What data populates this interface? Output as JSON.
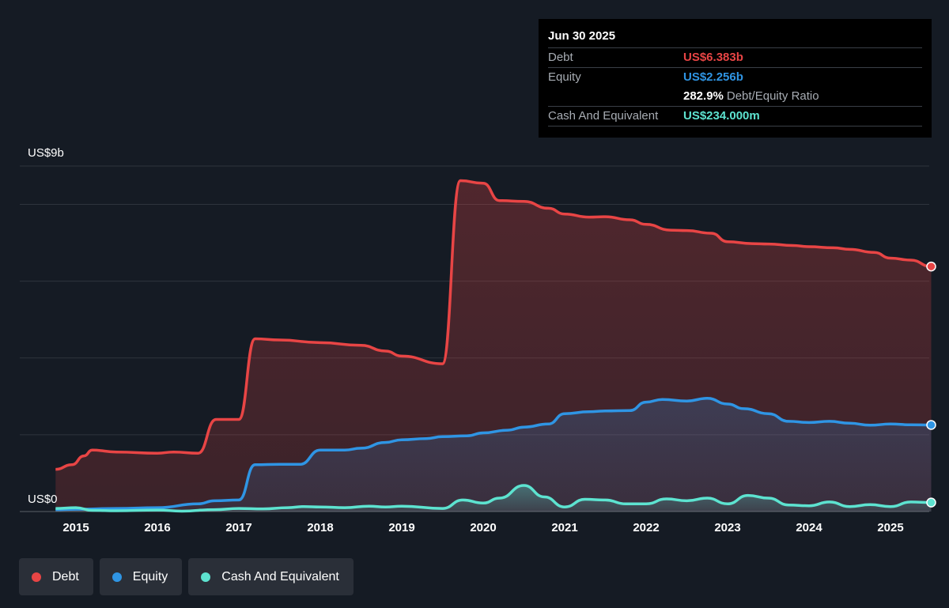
{
  "chart_data": {
    "type": "area",
    "ylim": [
      0,
      9
    ],
    "y_unit": "US$ billions",
    "y_tick_labels": {
      "top": "US$9b",
      "bottom": "US$0"
    },
    "x_tick_labels": [
      "2015",
      "2016",
      "2017",
      "2018",
      "2019",
      "2020",
      "2021",
      "2022",
      "2023",
      "2024",
      "2025"
    ],
    "grid": true,
    "legend_position": "bottom-left",
    "series": [
      {
        "name": "Debt",
        "color": "#e84545",
        "points": [
          [
            2014.75,
            1.1
          ],
          [
            2014.95,
            1.22
          ],
          [
            2015.1,
            1.45
          ],
          [
            2015.2,
            1.6
          ],
          [
            2015.5,
            1.55
          ],
          [
            2016.0,
            1.52
          ],
          [
            2016.2,
            1.55
          ],
          [
            2016.5,
            1.52
          ],
          [
            2016.72,
            2.4
          ],
          [
            2017.0,
            2.4
          ],
          [
            2017.2,
            4.5
          ],
          [
            2017.5,
            4.47
          ],
          [
            2018.0,
            4.4
          ],
          [
            2018.5,
            4.33
          ],
          [
            2018.8,
            4.18
          ],
          [
            2019.0,
            4.05
          ],
          [
            2019.5,
            3.85
          ],
          [
            2019.72,
            8.62
          ],
          [
            2020.0,
            8.55
          ],
          [
            2020.2,
            8.1
          ],
          [
            2020.5,
            8.08
          ],
          [
            2020.8,
            7.9
          ],
          [
            2021.0,
            7.75
          ],
          [
            2021.3,
            7.67
          ],
          [
            2021.5,
            7.68
          ],
          [
            2021.8,
            7.6
          ],
          [
            2022.0,
            7.48
          ],
          [
            2022.3,
            7.33
          ],
          [
            2022.5,
            7.32
          ],
          [
            2022.8,
            7.25
          ],
          [
            2023.0,
            7.03
          ],
          [
            2023.3,
            6.98
          ],
          [
            2023.5,
            6.97
          ],
          [
            2023.8,
            6.93
          ],
          [
            2024.0,
            6.9
          ],
          [
            2024.3,
            6.87
          ],
          [
            2024.5,
            6.83
          ],
          [
            2024.8,
            6.75
          ],
          [
            2025.0,
            6.6
          ],
          [
            2025.25,
            6.55
          ],
          [
            2025.5,
            6.383
          ]
        ]
      },
      {
        "name": "Equity",
        "color": "#2f95e4",
        "points": [
          [
            2014.75,
            0.05
          ],
          [
            2015.0,
            0.06
          ],
          [
            2015.5,
            0.08
          ],
          [
            2016.0,
            0.1
          ],
          [
            2016.5,
            0.2
          ],
          [
            2016.7,
            0.28
          ],
          [
            2017.0,
            0.3
          ],
          [
            2017.2,
            1.22
          ],
          [
            2017.5,
            1.23
          ],
          [
            2017.75,
            1.23
          ],
          [
            2018.0,
            1.6
          ],
          [
            2018.3,
            1.6
          ],
          [
            2018.5,
            1.65
          ],
          [
            2018.8,
            1.8
          ],
          [
            2019.0,
            1.87
          ],
          [
            2019.3,
            1.9
          ],
          [
            2019.5,
            1.95
          ],
          [
            2019.8,
            1.97
          ],
          [
            2020.0,
            2.05
          ],
          [
            2020.3,
            2.12
          ],
          [
            2020.5,
            2.2
          ],
          [
            2020.8,
            2.28
          ],
          [
            2021.0,
            2.55
          ],
          [
            2021.3,
            2.6
          ],
          [
            2021.5,
            2.62
          ],
          [
            2021.8,
            2.63
          ],
          [
            2022.0,
            2.85
          ],
          [
            2022.2,
            2.92
          ],
          [
            2022.5,
            2.88
          ],
          [
            2022.75,
            2.95
          ],
          [
            2023.0,
            2.8
          ],
          [
            2023.2,
            2.68
          ],
          [
            2023.5,
            2.55
          ],
          [
            2023.75,
            2.35
          ],
          [
            2024.0,
            2.32
          ],
          [
            2024.25,
            2.35
          ],
          [
            2024.5,
            2.3
          ],
          [
            2024.75,
            2.25
          ],
          [
            2025.0,
            2.28
          ],
          [
            2025.25,
            2.26
          ],
          [
            2025.5,
            2.256
          ]
        ]
      },
      {
        "name": "Cash And Equivalent",
        "color": "#5de3d0",
        "points": [
          [
            2014.75,
            0.08
          ],
          [
            2015.0,
            0.1
          ],
          [
            2015.2,
            0.03
          ],
          [
            2015.5,
            0.02
          ],
          [
            2016.0,
            0.04
          ],
          [
            2016.3,
            0.01
          ],
          [
            2016.7,
            0.05
          ],
          [
            2017.0,
            0.08
          ],
          [
            2017.3,
            0.07
          ],
          [
            2017.6,
            0.1
          ],
          [
            2017.8,
            0.13
          ],
          [
            2018.0,
            0.12
          ],
          [
            2018.3,
            0.1
          ],
          [
            2018.6,
            0.14
          ],
          [
            2018.8,
            0.12
          ],
          [
            2019.0,
            0.14
          ],
          [
            2019.5,
            0.08
          ],
          [
            2019.75,
            0.3
          ],
          [
            2020.0,
            0.22
          ],
          [
            2020.2,
            0.35
          ],
          [
            2020.5,
            0.68
          ],
          [
            2020.75,
            0.38
          ],
          [
            2021.0,
            0.12
          ],
          [
            2021.25,
            0.32
          ],
          [
            2021.5,
            0.3
          ],
          [
            2021.75,
            0.2
          ],
          [
            2022.0,
            0.2
          ],
          [
            2022.25,
            0.33
          ],
          [
            2022.5,
            0.28
          ],
          [
            2022.75,
            0.35
          ],
          [
            2023.0,
            0.2
          ],
          [
            2023.25,
            0.42
          ],
          [
            2023.5,
            0.35
          ],
          [
            2023.75,
            0.17
          ],
          [
            2024.0,
            0.15
          ],
          [
            2024.25,
            0.25
          ],
          [
            2024.5,
            0.13
          ],
          [
            2024.75,
            0.18
          ],
          [
            2025.0,
            0.13
          ],
          [
            2025.25,
            0.25
          ],
          [
            2025.5,
            0.234
          ]
        ]
      }
    ]
  },
  "tooltip": {
    "date": "Jun 30 2025",
    "debt_label": "Debt",
    "debt_value": "US$6.383b",
    "equity_label": "Equity",
    "equity_value": "US$2.256b",
    "ratio_value": "282.9%",
    "ratio_label": "Debt/Equity Ratio",
    "cash_label": "Cash And Equivalent",
    "cash_value": "US$234.000m"
  },
  "legend": {
    "items": [
      {
        "label": "Debt",
        "color": "#e84545"
      },
      {
        "label": "Equity",
        "color": "#2f95e4"
      },
      {
        "label": "Cash And Equivalent",
        "color": "#5de3d0"
      }
    ]
  }
}
